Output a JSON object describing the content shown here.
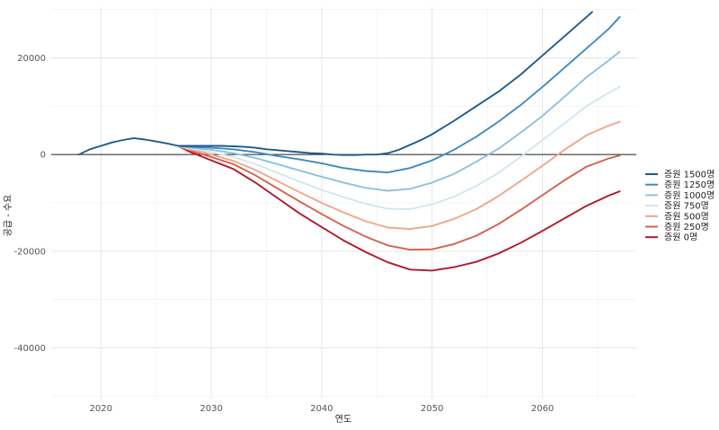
{
  "chart_data": {
    "type": "line",
    "xlabel": "연도",
    "ylabel": "공급 - 수요",
    "xlim": [
      2015.5,
      2068.5
    ],
    "ylim": [
      -50500,
      30500
    ],
    "x_ticks": [
      "2020",
      "2030",
      "2040",
      "2050",
      "2060"
    ],
    "x_tick_values": [
      2020,
      2030,
      2040,
      2050,
      2060
    ],
    "y_ticks": [
      "-40000",
      "-20000",
      "0",
      "20000"
    ],
    "y_tick_values": [
      -40000,
      -20000,
      0,
      20000
    ],
    "grid": true,
    "reference_line_y": 0,
    "legend_position": "right",
    "series": [
      {
        "name": "증원 1500명",
        "color": "#1f5a8b",
        "points": [
          [
            2018,
            0
          ],
          [
            2019,
            1100
          ],
          [
            2020,
            1800
          ],
          [
            2021,
            2500
          ],
          [
            2022,
            3000
          ],
          [
            2023,
            3400
          ],
          [
            2024,
            3100
          ],
          [
            2025,
            2700
          ],
          [
            2026,
            2300
          ],
          [
            2027,
            1800
          ],
          [
            2028,
            1800
          ],
          [
            2029,
            1800
          ],
          [
            2030,
            1800
          ],
          [
            2031,
            1800
          ],
          [
            2032,
            1700
          ],
          [
            2033,
            1600
          ],
          [
            2034,
            1400
          ],
          [
            2035,
            1100
          ],
          [
            2036,
            900
          ],
          [
            2037,
            700
          ],
          [
            2038,
            500
          ],
          [
            2039,
            300
          ],
          [
            2040,
            200
          ],
          [
            2041,
            0
          ],
          [
            2042,
            -100
          ],
          [
            2043,
            -100
          ],
          [
            2044,
            0
          ],
          [
            2045,
            0
          ],
          [
            2046,
            300
          ],
          [
            2047,
            1000
          ],
          [
            2048,
            2000
          ],
          [
            2049,
            3000
          ],
          [
            2050,
            4200
          ],
          [
            2052,
            7000
          ],
          [
            2054,
            10000
          ],
          [
            2056,
            13000
          ],
          [
            2058,
            16500
          ],
          [
            2060,
            20500
          ],
          [
            2062,
            24500
          ],
          [
            2064,
            28500
          ],
          [
            2064.5,
            29500
          ]
        ]
      },
      {
        "name": "증원 1250명",
        "color": "#3f8ac0",
        "points": [
          [
            2027,
            1800
          ],
          [
            2028,
            1600
          ],
          [
            2029,
            1500
          ],
          [
            2030,
            1400
          ],
          [
            2032,
            1100
          ],
          [
            2034,
            500
          ],
          [
            2036,
            -300
          ],
          [
            2038,
            -1000
          ],
          [
            2040,
            -1800
          ],
          [
            2042,
            -2800
          ],
          [
            2044,
            -3400
          ],
          [
            2046,
            -3700
          ],
          [
            2048,
            -2800
          ],
          [
            2050,
            -1200
          ],
          [
            2052,
            1000
          ],
          [
            2054,
            3700
          ],
          [
            2056,
            6800
          ],
          [
            2058,
            10200
          ],
          [
            2060,
            14000
          ],
          [
            2062,
            18000
          ],
          [
            2064,
            22000
          ],
          [
            2066,
            26000
          ],
          [
            2067,
            28500
          ]
        ]
      },
      {
        "name": "증원 1000명",
        "color": "#8fc1de",
        "points": [
          [
            2027,
            1800
          ],
          [
            2028,
            1500
          ],
          [
            2029,
            1200
          ],
          [
            2030,
            1000
          ],
          [
            2032,
            300
          ],
          [
            2034,
            -700
          ],
          [
            2036,
            -2000
          ],
          [
            2038,
            -3300
          ],
          [
            2040,
            -4600
          ],
          [
            2042,
            -5800
          ],
          [
            2044,
            -6900
          ],
          [
            2046,
            -7500
          ],
          [
            2048,
            -7100
          ],
          [
            2050,
            -5800
          ],
          [
            2052,
            -4000
          ],
          [
            2054,
            -1500
          ],
          [
            2056,
            1200
          ],
          [
            2058,
            4500
          ],
          [
            2060,
            8000
          ],
          [
            2062,
            12000
          ],
          [
            2064,
            16000
          ],
          [
            2066,
            19500
          ],
          [
            2067,
            21300
          ]
        ]
      },
      {
        "name": "증원 750명",
        "color": "#d3e6ee",
        "points": [
          [
            2027,
            1800
          ],
          [
            2028,
            1300
          ],
          [
            2029,
            900
          ],
          [
            2030,
            500
          ],
          [
            2032,
            -500
          ],
          [
            2034,
            -2000
          ],
          [
            2036,
            -3800
          ],
          [
            2038,
            -5600
          ],
          [
            2040,
            -7300
          ],
          [
            2042,
            -8800
          ],
          [
            2044,
            -10200
          ],
          [
            2046,
            -11200
          ],
          [
            2048,
            -11300
          ],
          [
            2050,
            -10300
          ],
          [
            2052,
            -8700
          ],
          [
            2054,
            -6500
          ],
          [
            2056,
            -3800
          ],
          [
            2058,
            -500
          ],
          [
            2060,
            3000
          ],
          [
            2062,
            6500
          ],
          [
            2064,
            10000
          ],
          [
            2066,
            12800
          ],
          [
            2067,
            14000
          ]
        ]
      },
      {
        "name": "증원 500명",
        "color": "#eda88a",
        "points": [
          [
            2027,
            1800
          ],
          [
            2028,
            1100
          ],
          [
            2029,
            600
          ],
          [
            2030,
            0
          ],
          [
            2032,
            -1300
          ],
          [
            2034,
            -3200
          ],
          [
            2036,
            -5500
          ],
          [
            2038,
            -7800
          ],
          [
            2040,
            -10000
          ],
          [
            2042,
            -12000
          ],
          [
            2044,
            -13800
          ],
          [
            2046,
            -15100
          ],
          [
            2048,
            -15400
          ],
          [
            2050,
            -14800
          ],
          [
            2052,
            -13300
          ],
          [
            2054,
            -11300
          ],
          [
            2056,
            -8600
          ],
          [
            2058,
            -5500
          ],
          [
            2060,
            -2300
          ],
          [
            2062,
            1000
          ],
          [
            2064,
            4000
          ],
          [
            2066,
            6000
          ],
          [
            2067,
            6800
          ]
        ]
      },
      {
        "name": "증원 250명",
        "color": "#d6604d",
        "points": [
          [
            2027,
            1800
          ],
          [
            2028,
            900
          ],
          [
            2029,
            200
          ],
          [
            2030,
            -500
          ],
          [
            2032,
            -2000
          ],
          [
            2034,
            -4300
          ],
          [
            2036,
            -7000
          ],
          [
            2038,
            -9700
          ],
          [
            2040,
            -12300
          ],
          [
            2042,
            -14800
          ],
          [
            2044,
            -17000
          ],
          [
            2046,
            -18800
          ],
          [
            2048,
            -19700
          ],
          [
            2050,
            -19600
          ],
          [
            2052,
            -18500
          ],
          [
            2054,
            -16800
          ],
          [
            2056,
            -14400
          ],
          [
            2058,
            -11500
          ],
          [
            2060,
            -8400
          ],
          [
            2062,
            -5300
          ],
          [
            2064,
            -2500
          ],
          [
            2066,
            -800
          ],
          [
            2067,
            -200
          ]
        ]
      },
      {
        "name": "증원 0명",
        "color": "#b2182b",
        "points": [
          [
            2027,
            1800
          ],
          [
            2028,
            600
          ],
          [
            2029,
            -300
          ],
          [
            2030,
            -1200
          ],
          [
            2032,
            -3000
          ],
          [
            2034,
            -5800
          ],
          [
            2036,
            -9000
          ],
          [
            2038,
            -12200
          ],
          [
            2040,
            -15000
          ],
          [
            2042,
            -17800
          ],
          [
            2044,
            -20200
          ],
          [
            2046,
            -22300
          ],
          [
            2048,
            -23800
          ],
          [
            2050,
            -24000
          ],
          [
            2052,
            -23300
          ],
          [
            2054,
            -22200
          ],
          [
            2056,
            -20500
          ],
          [
            2058,
            -18300
          ],
          [
            2060,
            -15800
          ],
          [
            2062,
            -13200
          ],
          [
            2064,
            -10600
          ],
          [
            2066,
            -8500
          ],
          [
            2067,
            -7600
          ]
        ]
      }
    ]
  },
  "legend_items": [
    "증원 1500명",
    "증원 1250명",
    "증원 1000명",
    "증원 750명",
    "증원 500명",
    "증원 250명",
    "증원 0명"
  ]
}
